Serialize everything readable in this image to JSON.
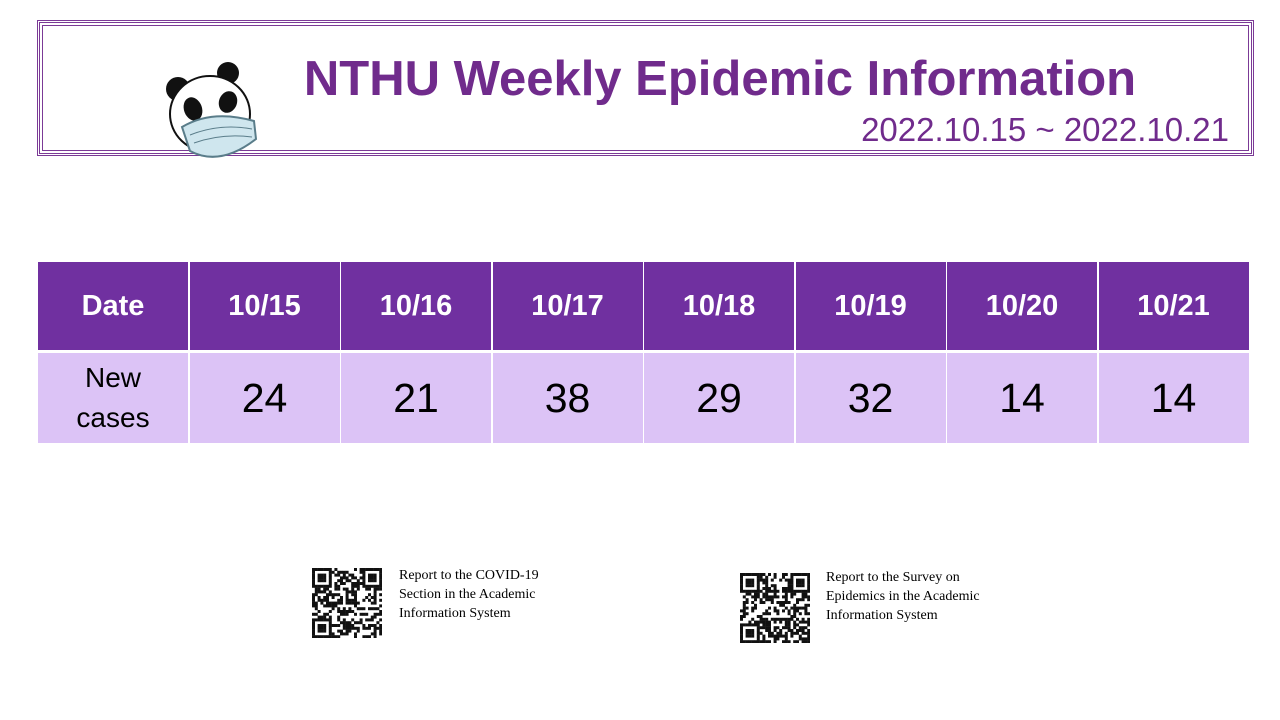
{
  "header": {
    "title": "NTHU Weekly Epidemic Information",
    "date_range": "2022.10.15 ~ 2022.10.21"
  },
  "table": {
    "rows": [
      [
        "Date",
        "10/15",
        "10/16",
        "10/17",
        "10/18",
        "10/19",
        "10/20",
        "10/21"
      ],
      [
        "New cases",
        "24",
        "21",
        "38",
        "29",
        "32",
        "14",
        "14"
      ]
    ]
  },
  "qr_links": [
    {
      "caption": "Report to the COVID-19 Section in the Academic Information System"
    },
    {
      "caption": "Report to the Survey on Epidemics in the Academic Information System"
    }
  ]
}
